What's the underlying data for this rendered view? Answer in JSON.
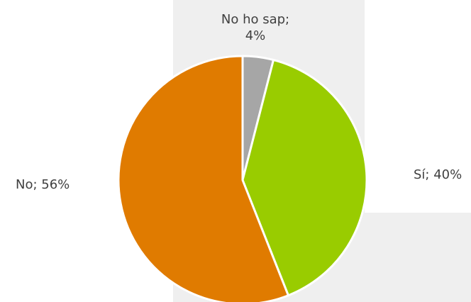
{
  "chart_data": {
    "type": "pie",
    "title": "",
    "slices": [
      {
        "label": "No ho sap",
        "value": 4,
        "display": "No ho sap; 4%",
        "color": "#a6a6a6"
      },
      {
        "label": "Sí",
        "value": 40,
        "display": "Sí; 40%",
        "color": "#99cc00"
      },
      {
        "label": "No",
        "value": 56,
        "display": "No; 56%",
        "color": "#e07b00"
      }
    ],
    "start": "top",
    "direction": "clockwise"
  }
}
